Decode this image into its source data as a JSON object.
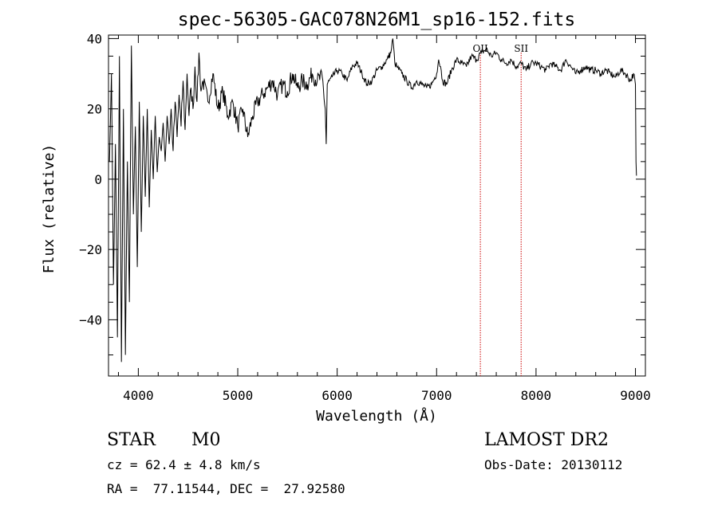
{
  "chart_data": {
    "type": "line",
    "title": "spec-56305-GAC078N26M1_sp16-152.fits",
    "xlabel": "Wavelength (Å)",
    "ylabel": "Flux (relative)",
    "xlim": [
      3700,
      9100
    ],
    "ylim": [
      -56,
      41
    ],
    "x_ticks": [
      4000,
      5000,
      6000,
      7000,
      8000,
      9000
    ],
    "y_ticks": [
      -40,
      -20,
      0,
      20,
      40
    ],
    "grid": false,
    "series_color": "#000000",
    "line_color_markers": "#cc0000",
    "series": [
      {
        "x": [
          3710,
          3730,
          3750,
          3770,
          3790,
          3810,
          3830,
          3850,
          3870,
          3890,
          3910,
          3930,
          3950,
          3970,
          3990,
          4010,
          4030,
          4050,
          4070,
          4090,
          4110,
          4130,
          4150,
          4170,
          4190,
          4210,
          4230,
          4250,
          4270,
          4290,
          4310,
          4330,
          4350,
          4370,
          4390,
          4410,
          4430,
          4450,
          4470,
          4490,
          4510,
          4530,
          4550,
          4570,
          4590,
          4610,
          4630,
          4650,
          4700,
          4750,
          4800,
          4850,
          4900,
          4950,
          5000,
          5050,
          5100,
          5150,
          5200,
          5250,
          5300,
          5350,
          5400,
          5450,
          5500,
          5550,
          5600,
          5650,
          5700,
          5750,
          5800,
          5850,
          5880,
          5890,
          5900,
          5920,
          5950,
          6000,
          6050,
          6100,
          6150,
          6200,
          6250,
          6300,
          6350,
          6400,
          6450,
          6500,
          6540,
          6560,
          6580,
          6600,
          6650,
          6700,
          6750,
          6800,
          6850,
          6900,
          6950,
          7000,
          7020,
          7040,
          7060,
          7100,
          7150,
          7200,
          7250,
          7300,
          7350,
          7400,
          7450,
          7500,
          7550,
          7600,
          7650,
          7700,
          7750,
          7800,
          7850,
          7900,
          7950,
          8000,
          8050,
          8100,
          8150,
          8200,
          8250,
          8300,
          8350,
          8400,
          8450,
          8500,
          8550,
          8600,
          8650,
          8700,
          8750,
          8800,
          8850,
          8900,
          8950,
          8980,
          9000,
          9005,
          9010
        ],
        "y": [
          5,
          30,
          -30,
          10,
          -45,
          35,
          -52,
          20,
          -50,
          5,
          -35,
          38,
          -10,
          15,
          -25,
          22,
          -15,
          18,
          -5,
          20,
          -8,
          14,
          0,
          18,
          2,
          12,
          8,
          16,
          5,
          18,
          10,
          20,
          8,
          22,
          12,
          24,
          15,
          28,
          14,
          30,
          18,
          26,
          20,
          32,
          22,
          36,
          25,
          28,
          22,
          30,
          20,
          25,
          18,
          22,
          15,
          20,
          12,
          18,
          22,
          24,
          26,
          28,
          24,
          27,
          25,
          30,
          26,
          28,
          27,
          30,
          28,
          29,
          20,
          10,
          27,
          28,
          29,
          31,
          30,
          28,
          32,
          33,
          30,
          27,
          28,
          31,
          32,
          34,
          36,
          40,
          33,
          32,
          30,
          28,
          26,
          28,
          27,
          26,
          27,
          30,
          34,
          32,
          28,
          27,
          31,
          34,
          33,
          32,
          35,
          34,
          36,
          37,
          35,
          36,
          34,
          33,
          34,
          32,
          33,
          31,
          33,
          33,
          32,
          31,
          33,
          32,
          31,
          34,
          32,
          30,
          31,
          32,
          31,
          31,
          30,
          31,
          30,
          29,
          31,
          30,
          28,
          30,
          27,
          5,
          1
        ]
      }
    ],
    "line_markers": [
      {
        "label": "OII",
        "x": 7440
      },
      {
        "label": "SII",
        "x": 7850
      }
    ]
  },
  "info": {
    "class_label": "STAR",
    "subclass": "M0",
    "survey": "LAMOST DR2",
    "redshift": "cz = 62.4 ± 4.8 km/s",
    "obs_date": "Obs-Date: 20130112",
    "coords": "RA =  77.11544, DEC =  27.92580"
  }
}
